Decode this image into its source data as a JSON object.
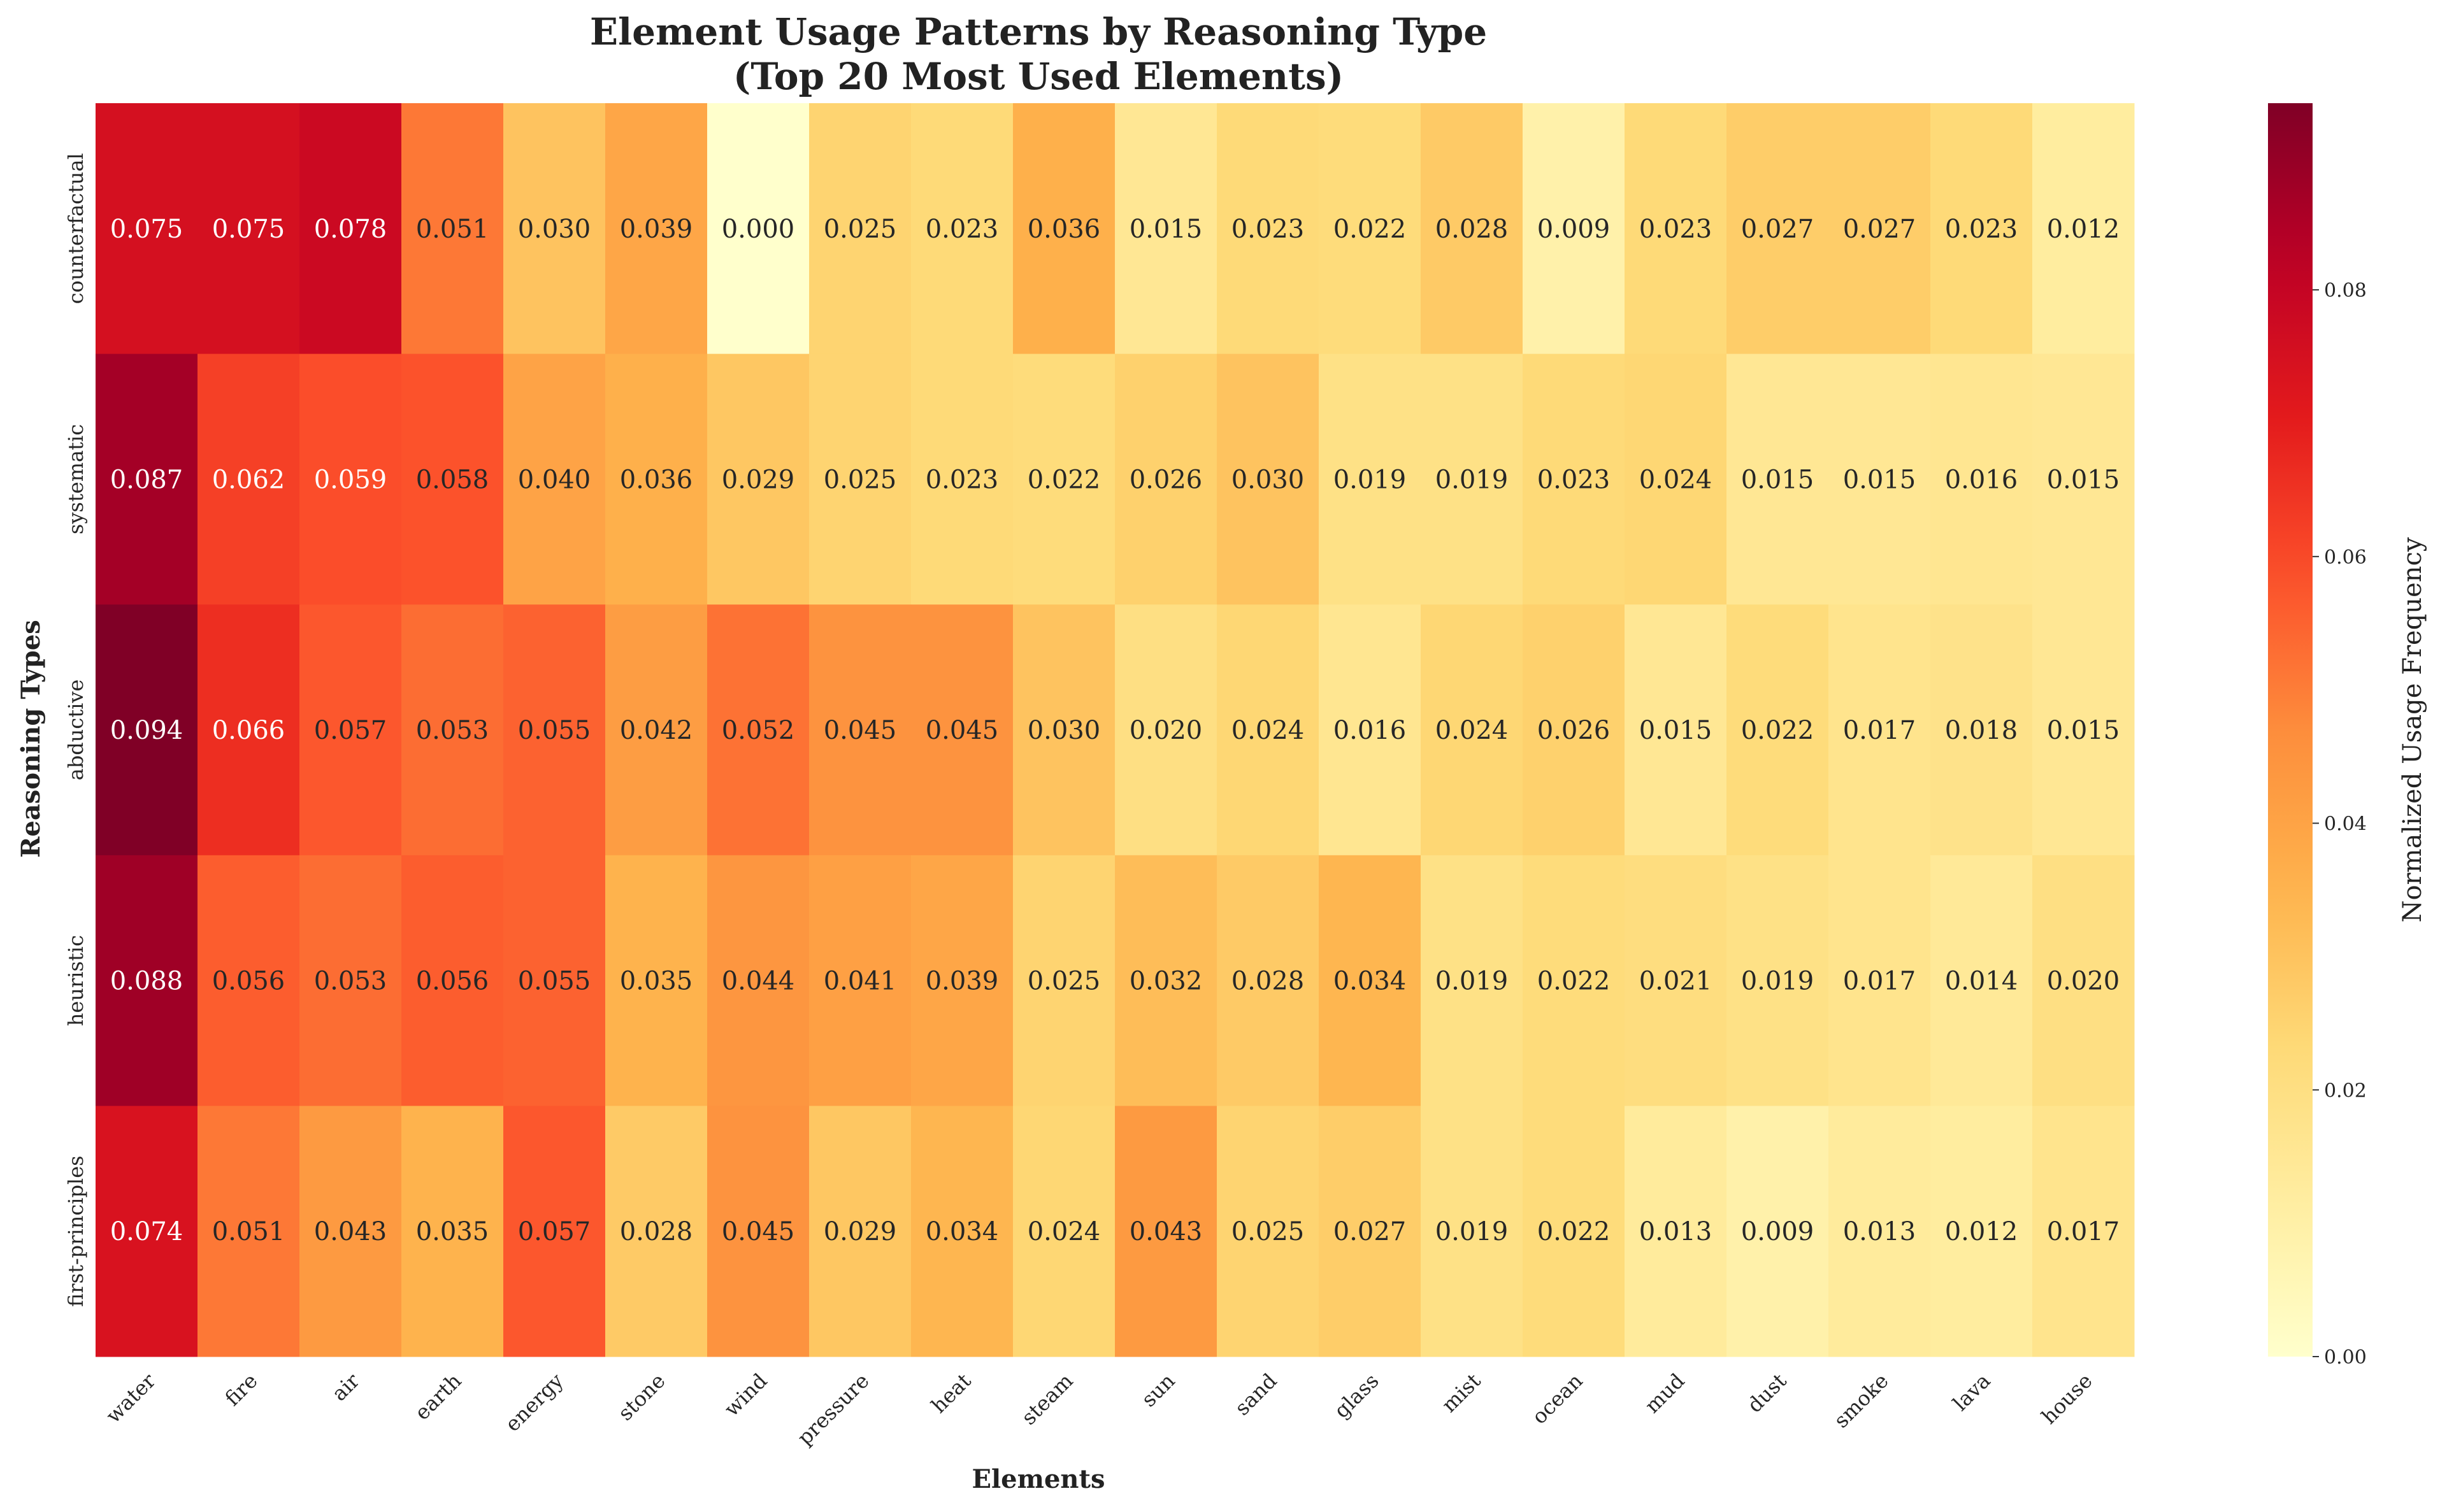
{
  "chart_data": {
    "type": "heatmap",
    "title_line1": "Element Usage Patterns by Reasoning Type",
    "title_line2": "(Top 20 Most Used Elements)",
    "xlabel": "Elements",
    "ylabel": "Reasoning Types",
    "colorbar_label": "Normalized Usage Frequency",
    "colormap": "YlOrRd",
    "vmin": 0.0,
    "vmax": 0.094,
    "colorbar_ticks": [
      "0.00",
      "0.02",
      "0.04",
      "0.06",
      "0.08"
    ],
    "colorbar_tick_values": [
      0.0,
      0.02,
      0.04,
      0.06,
      0.08
    ],
    "x": [
      "water",
      "fire",
      "air",
      "earth",
      "energy",
      "stone",
      "wind",
      "pressure",
      "heat",
      "steam",
      "sun",
      "sand",
      "glass",
      "mist",
      "ocean",
      "mud",
      "dust",
      "smoke",
      "lava",
      "house"
    ],
    "y": [
      "counterfactual",
      "systematic",
      "abductive",
      "heuristic",
      "first-principles"
    ],
    "values": [
      [
        0.075,
        0.075,
        0.078,
        0.051,
        0.03,
        0.039,
        0.0,
        0.025,
        0.023,
        0.036,
        0.015,
        0.023,
        0.022,
        0.028,
        0.009,
        0.023,
        0.027,
        0.027,
        0.023,
        0.012
      ],
      [
        0.087,
        0.062,
        0.059,
        0.058,
        0.04,
        0.036,
        0.029,
        0.025,
        0.023,
        0.022,
        0.026,
        0.03,
        0.019,
        0.019,
        0.023,
        0.024,
        0.015,
        0.015,
        0.016,
        0.015
      ],
      [
        0.094,
        0.066,
        0.057,
        0.053,
        0.055,
        0.042,
        0.052,
        0.045,
        0.045,
        0.03,
        0.02,
        0.024,
        0.016,
        0.024,
        0.026,
        0.015,
        0.022,
        0.017,
        0.018,
        0.015
      ],
      [
        0.088,
        0.056,
        0.053,
        0.056,
        0.055,
        0.035,
        0.044,
        0.041,
        0.039,
        0.025,
        0.032,
        0.028,
        0.034,
        0.019,
        0.022,
        0.021,
        0.019,
        0.017,
        0.014,
        0.02
      ],
      [
        0.074,
        0.051,
        0.043,
        0.035,
        0.057,
        0.028,
        0.045,
        0.029,
        0.034,
        0.024,
        0.043,
        0.025,
        0.027,
        0.019,
        0.022,
        0.013,
        0.009,
        0.013,
        0.012,
        0.017
      ]
    ]
  }
}
